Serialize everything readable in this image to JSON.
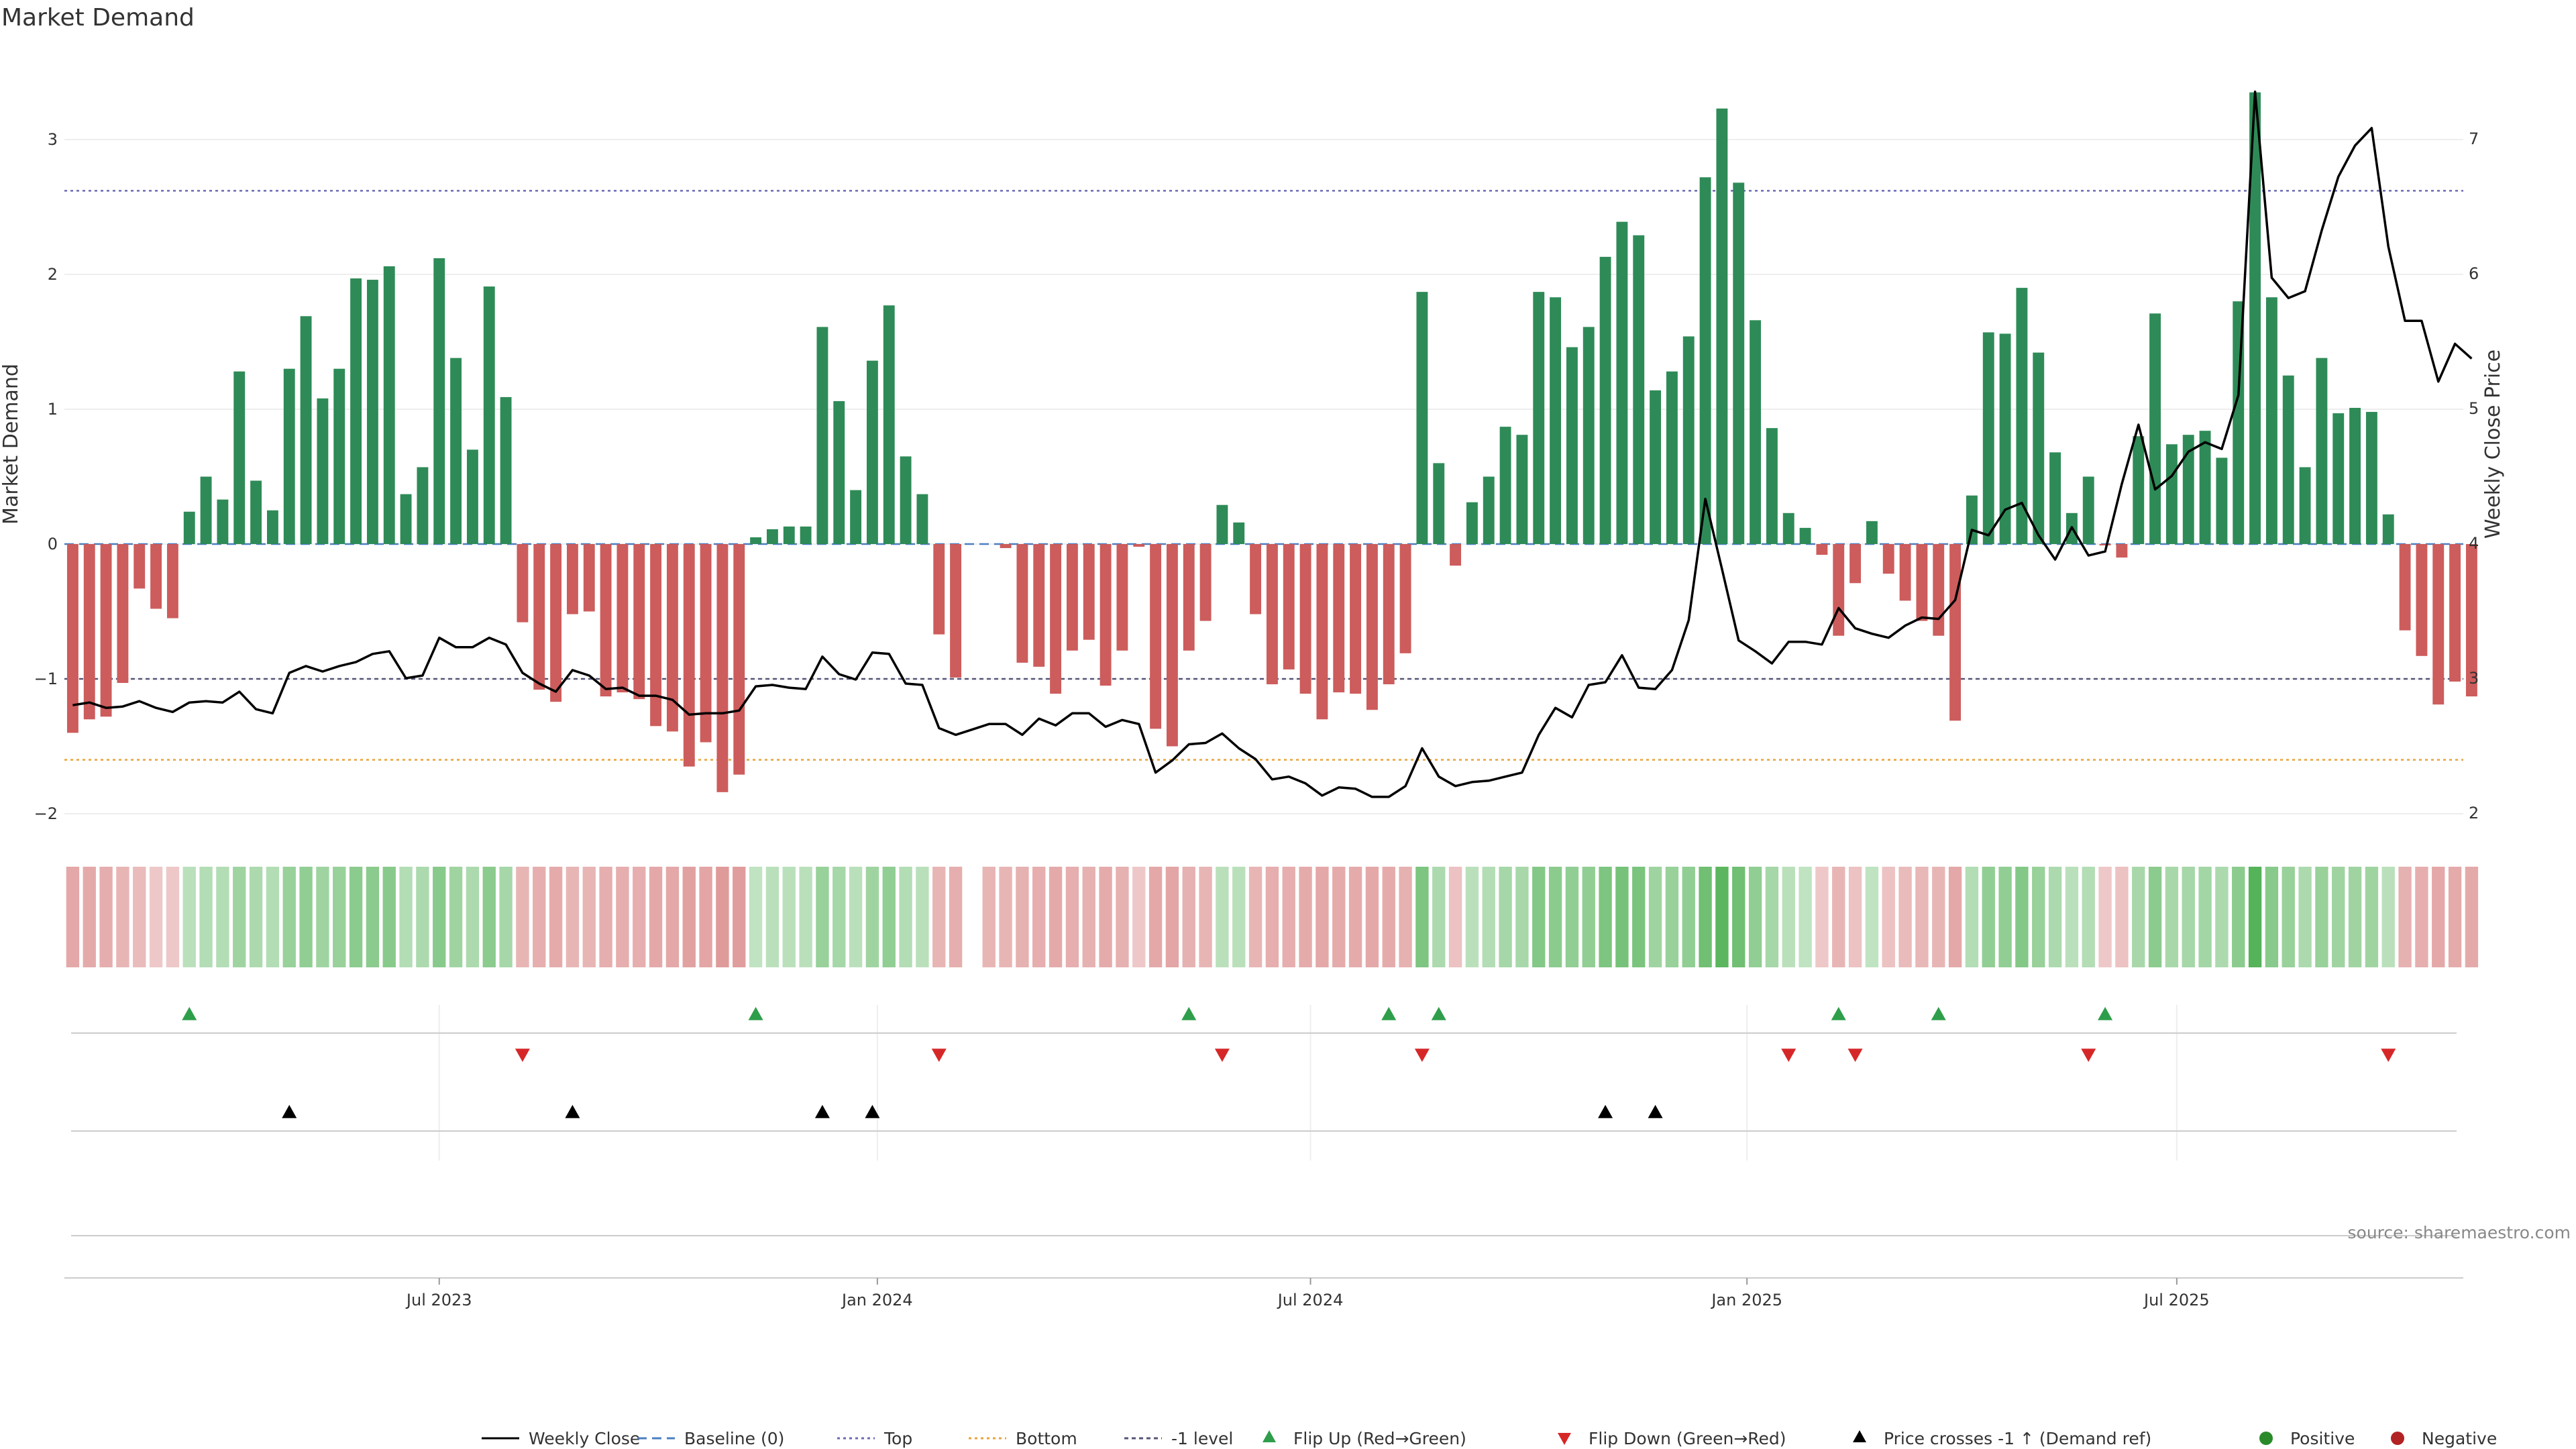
{
  "colors": {
    "positive": "#2e8b57",
    "negative": "#cd5c5c",
    "price_line": "#000000",
    "baseline": "#4a7fc1",
    "top": "#6b6bb5",
    "bottom": "#e8a33b",
    "minus1": "#555577",
    "flip_up": "#2e9e4a",
    "flip_down": "#d62728",
    "cross": "#000000",
    "heat_pos_base": "#4caf50",
    "heat_neg_base": "#c85050",
    "legend_positive": "#2a8a2a",
    "legend_negative": "#b22222"
  },
  "chart_data": {
    "type": "bar",
    "title": "Market Demand",
    "ylabel_left": "Market Demand",
    "ylabel_right": "Weekly Close Price",
    "ylim_left": [
      -2.1,
      3.45
    ],
    "ylim_right": [
      1.9,
      7.45
    ],
    "yticks_left": [
      "3",
      "2",
      "1",
      "0",
      "−1",
      "−2"
    ],
    "yticks_right": [
      "7",
      "6",
      "5",
      "4",
      "3",
      "2"
    ],
    "reference_levels": {
      "top": 2.62,
      "bottom": -1.6,
      "minus1": -1.0,
      "baseline": 0
    },
    "x_ticks": [
      {
        "label": "Jul 2023",
        "week": 22
      },
      {
        "label": "Jan 2024",
        "week": 48.3
      },
      {
        "label": "Jul 2024",
        "week": 74.3
      },
      {
        "label": "Jan 2025",
        "week": 100.5
      },
      {
        "label": "Jul 2025",
        "week": 126.3
      }
    ],
    "week_count": 144,
    "demand": [
      -1.4,
      -1.3,
      -1.28,
      -1.03,
      -0.33,
      -0.48,
      -0.55,
      0.24,
      0.5,
      0.33,
      1.28,
      0.47,
      0.25,
      1.3,
      1.69,
      1.08,
      1.3,
      1.97,
      1.96,
      2.06,
      0.37,
      0.57,
      2.12,
      1.38,
      0.7,
      1.91,
      1.09,
      -0.58,
      -1.08,
      -1.17,
      -0.52,
      -0.5,
      -1.13,
      -1.1,
      -1.15,
      -1.35,
      -1.39,
      -1.65,
      -1.47,
      -1.84,
      -1.71,
      0.05,
      0.11,
      0.13,
      0.13,
      1.61,
      1.06,
      0.4,
      1.36,
      1.77,
      0.65,
      0.37,
      -0.67,
      -0.99,
      0,
      0,
      -0.03,
      -0.88,
      -0.91,
      -1.11,
      -0.79,
      -0.71,
      -1.05,
      -0.79,
      -0.02,
      -1.37,
      -1.5,
      -0.79,
      -0.57,
      0.29,
      0.16,
      -0.52,
      -1.04,
      -0.93,
      -1.11,
      -1.3,
      -1.1,
      -1.11,
      -1.23,
      -1.04,
      -0.81,
      1.87,
      0.6,
      -0.16,
      0.31,
      0.5,
      0.87,
      0.81,
      1.87,
      1.83,
      1.46,
      1.61,
      2.13,
      2.39,
      2.29,
      1.14,
      1.28,
      1.54,
      2.72,
      3.23,
      2.68,
      1.66,
      0.86,
      0.23,
      0.12,
      -0.08,
      -0.68,
      -0.29,
      0.17,
      -0.22,
      -0.42,
      -0.57,
      -0.68,
      -1.31,
      0.36,
      1.57,
      1.56,
      1.9,
      1.42,
      0.68,
      0.23,
      0.5,
      -0.01,
      -0.1,
      0.8,
      1.71,
      0.74,
      0.81,
      0.84,
      0.64,
      1.8,
      3.35,
      1.83,
      1.25,
      0.57,
      1.38,
      0.97,
      1.01,
      0.98,
      0.22,
      -0.64,
      -0.83,
      -1.19,
      -1.02,
      -1.13
    ],
    "close": [
      2.8,
      2.82,
      2.78,
      2.79,
      2.83,
      2.78,
      2.75,
      2.82,
      2.83,
      2.82,
      2.9,
      2.77,
      2.74,
      3.04,
      3.09,
      3.05,
      3.09,
      3.12,
      3.18,
      3.2,
      3,
      3.02,
      3.3,
      3.23,
      3.23,
      3.3,
      3.25,
      3.04,
      2.96,
      2.9,
      3.06,
      3.02,
      2.92,
      2.93,
      2.87,
      2.87,
      2.84,
      2.73,
      2.74,
      2.74,
      2.76,
      2.94,
      2.95,
      2.93,
      2.92,
      3.16,
      3.03,
      2.99,
      3.19,
      3.18,
      2.96,
      2.95,
      2.63,
      2.58,
      2.62,
      2.66,
      2.66,
      2.58,
      2.7,
      2.65,
      2.74,
      2.74,
      2.64,
      2.69,
      2.66,
      2.3,
      2.39,
      2.51,
      2.52,
      2.59,
      2.48,
      2.4,
      2.25,
      2.27,
      2.22,
      2.13,
      2.19,
      2.18,
      2.12,
      2.12,
      2.2,
      2.48,
      2.27,
      2.2,
      2.23,
      2.24,
      2.27,
      2.3,
      2.58,
      2.78,
      2.71,
      2.95,
      2.97,
      3.17,
      2.93,
      2.92,
      3.06,
      3.43,
      4.33,
      3.81,
      3.28,
      3.2,
      3.11,
      3.27,
      3.27,
      3.25,
      3.52,
      3.37,
      3.33,
      3.3,
      3.39,
      3.45,
      3.44,
      3.58,
      4.1,
      4.06,
      4.25,
      4.3,
      4.06,
      3.88,
      4.12,
      3.91,
      3.94,
      4.44,
      4.88,
      4.4,
      4.5,
      4.68,
      4.75,
      4.7,
      5.1,
      7.35,
      5.97,
      5.82,
      5.87,
      6.32,
      6.72,
      6.95,
      7.08,
      6.2,
      5.65,
      5.65,
      5.2,
      5.48,
      5.37
    ],
    "heatmap_intensity": [
      -0.4,
      -0.38,
      -0.36,
      -0.3,
      -0.25,
      -0.15,
      -0.15,
      0.25,
      0.3,
      0.3,
      0.45,
      0.35,
      0.3,
      0.5,
      0.55,
      0.45,
      0.5,
      0.6,
      0.6,
      0.62,
      0.3,
      0.35,
      0.62,
      0.45,
      0.35,
      0.6,
      0.4,
      -0.3,
      -0.35,
      -0.37,
      -0.3,
      -0.3,
      -0.35,
      -0.35,
      -0.35,
      -0.4,
      -0.4,
      -0.45,
      -0.42,
      -0.5,
      -0.48,
      0.2,
      0.25,
      0.25,
      0.25,
      0.5,
      0.4,
      0.25,
      0.45,
      0.55,
      0.3,
      0.25,
      -0.3,
      -0.35,
      null,
      -0.3,
      -0.3,
      -0.33,
      -0.35,
      -0.38,
      -0.35,
      -0.33,
      -0.37,
      -0.33,
      -0.15,
      -0.4,
      -0.42,
      -0.33,
      -0.3,
      0.25,
      0.25,
      -0.3,
      -0.35,
      -0.35,
      -0.37,
      -0.4,
      -0.37,
      -0.37,
      -0.4,
      -0.37,
      -0.33,
      0.7,
      0.35,
      -0.2,
      0.25,
      0.3,
      0.4,
      0.38,
      0.65,
      0.6,
      0.55,
      0.55,
      0.7,
      0.75,
      0.72,
      0.45,
      0.5,
      0.55,
      0.8,
      0.95,
      0.8,
      0.55,
      0.4,
      0.25,
      0.2,
      -0.15,
      -0.3,
      -0.2,
      0.2,
      -0.2,
      -0.25,
      -0.28,
      -0.3,
      -0.4,
      0.3,
      0.55,
      0.55,
      0.65,
      0.5,
      0.35,
      0.25,
      0.3,
      -0.15,
      -0.2,
      0.38,
      0.6,
      0.38,
      0.4,
      0.42,
      0.35,
      0.6,
      1.0,
      0.62,
      0.5,
      0.35,
      0.5,
      0.45,
      0.45,
      0.45,
      0.25,
      -0.33,
      -0.35,
      -0.4,
      -0.37,
      -0.38
    ],
    "flip_up_weeks": [
      7,
      41,
      67,
      79,
      82,
      106,
      112,
      122
    ],
    "flip_down_weeks": [
      27,
      52,
      69,
      81,
      103,
      107,
      121,
      139
    ],
    "price_cross_weeks": [
      13,
      30,
      45,
      48,
      92,
      95
    ],
    "legend": [
      {
        "label": "Weekly Close",
        "kind": "line"
      },
      {
        "label": "Baseline (0)",
        "kind": "dashed"
      },
      {
        "label": "Top",
        "kind": "dotted-top"
      },
      {
        "label": "Bottom",
        "kind": "dotted-bottom"
      },
      {
        "label": "-1 level",
        "kind": "dashed-minus1"
      },
      {
        "label": "Flip Up (Red→Green)",
        "kind": "tri-up"
      },
      {
        "label": "Flip Down (Green→Red)",
        "kind": "tri-down"
      },
      {
        "label": "Price crosses -1 ↑ (Demand ref)",
        "kind": "tri-cross"
      },
      {
        "label": "Positive",
        "kind": "dot-pos"
      },
      {
        "label": "Negative",
        "kind": "dot-neg"
      }
    ],
    "source": "source: sharemaestro.com"
  }
}
